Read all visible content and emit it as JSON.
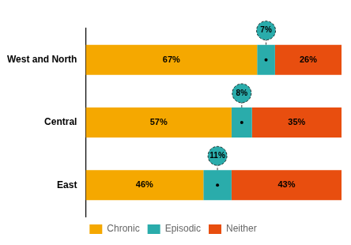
{
  "chart_data": {
    "type": "bar",
    "orientation": "horizontal",
    "stacked": true,
    "categories": [
      "East",
      "Central",
      "West and North"
    ],
    "series": [
      {
        "name": "Chronic",
        "color": "#F5A800",
        "values": [
          46,
          57,
          67
        ],
        "value_labels": [
          "46%",
          "57%",
          "67%"
        ]
      },
      {
        "name": "Episodic",
        "color": "#2AACAB",
        "values": [
          11,
          8,
          7
        ],
        "value_labels": [
          "11%",
          "8%",
          "7%"
        ]
      },
      {
        "name": "Neither",
        "color": "#E84E0F",
        "values": [
          43,
          35,
          26
        ],
        "value_labels": [
          "43%",
          "35%",
          "26%"
        ]
      }
    ],
    "xlim": [
      0,
      100
    ],
    "data_labels": true,
    "tick_labels": "y",
    "legend": "bottom",
    "grid": false
  }
}
